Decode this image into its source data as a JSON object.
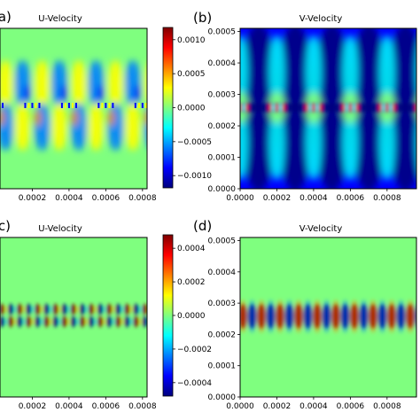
{
  "colors": {
    "jet": [
      "#00007f",
      "#0000ff",
      "#007fff",
      "#00ffff",
      "#7fff7f",
      "#ffff00",
      "#ff7f00",
      "#ff0000",
      "#7f0000"
    ],
    "background_field": "#7fff7f",
    "axis": "#000000"
  },
  "chart_data": [
    {
      "type": "heatmap",
      "panel": "(a)",
      "title": "U-Velocity",
      "x_ticks": [
        "0.0002",
        "0.0004",
        "0.0006",
        "0.0008"
      ],
      "y_ticks": [],
      "colorbar": {
        "ticks": [
          "0.0010",
          "0.0005",
          "0.0000",
          "−0.0005",
          "−0.0010"
        ],
        "tick_values": [
          0.001,
          0.0005,
          0.0,
          -0.0005,
          -0.001
        ],
        "range": [
          -0.00118,
          0.00118
        ]
      }
    },
    {
      "type": "heatmap",
      "panel": "(b)",
      "title": "V-Velocity",
      "x_ticks": [
        "0.0000",
        "0.0002",
        "0.0004",
        "0.0006",
        "0.0008"
      ],
      "y_ticks": [
        "0.0005",
        "0.0004",
        "0.0003",
        "0.0002",
        "0.0001",
        "0.0000"
      ],
      "x_tick_values": [
        0.0,
        0.0002,
        0.0004,
        0.0006,
        0.0008
      ],
      "y_tick_values": [
        0.0005,
        0.0004,
        0.0003,
        0.0002,
        0.0001,
        0.0
      ],
      "xlim": [
        0,
        0.00096
      ],
      "ylim": [
        0,
        0.00051
      ]
    },
    {
      "type": "heatmap",
      "panel": "(c)",
      "title": "U-Velocity",
      "x_ticks": [
        "0.0002",
        "0.0004",
        "0.0006",
        "0.0008"
      ],
      "y_ticks": [],
      "colorbar": {
        "ticks": [
          "0.0004",
          "0.0002",
          "0.0000",
          "−0.0002",
          "−0.0004"
        ],
        "tick_values": [
          0.0004,
          0.0002,
          0.0,
          -0.0002,
          -0.0004
        ],
        "range": [
          -0.00048,
          0.00048
        ]
      }
    },
    {
      "type": "heatmap",
      "panel": "(d)",
      "title": "V-Velocity",
      "x_ticks": [
        "0.0000",
        "0.0002",
        "0.0004",
        "0.0006",
        "0.0008"
      ],
      "y_ticks": [
        "0.0005",
        "0.0004",
        "0.0003",
        "0.0002",
        "0.0001",
        "0.0000"
      ],
      "x_tick_values": [
        0.0,
        0.0002,
        0.0004,
        0.0006,
        0.0008
      ],
      "y_tick_values": [
        0.0005,
        0.0004,
        0.0003,
        0.0002,
        0.0001,
        0.0
      ],
      "xlim": [
        0,
        0.00096
      ],
      "ylim": [
        0,
        0.00051
      ]
    }
  ]
}
